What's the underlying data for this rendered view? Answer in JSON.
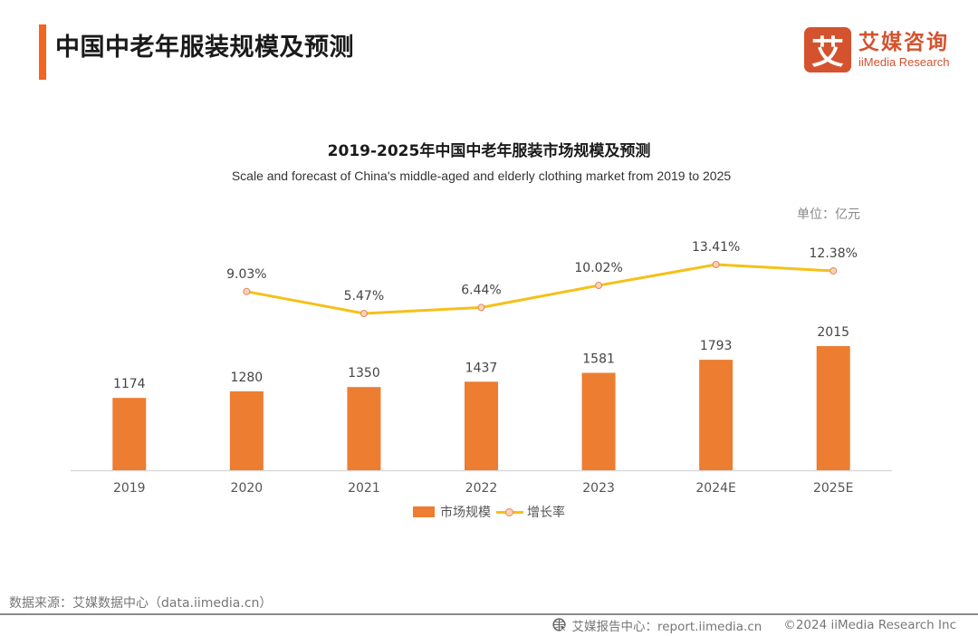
{
  "header": {
    "title": "中国中老年服装规模及预测",
    "logo_mark": "艾",
    "logo_cn": "艾媒咨询",
    "logo_en": "iiMedia Research"
  },
  "colors": {
    "accent": "#f26522",
    "bar": "#ed7d31",
    "line": "#f5c018",
    "marker_fill": "#fbd2b8",
    "marker_stroke": "#e08a5a",
    "brand": "#d4532e"
  },
  "chart_data": {
    "type": "bar",
    "title": "2019-2025年中国中老年服装市场规模及预测",
    "subtitle": "Scale and forecast of China's middle-aged and elderly clothing market from 2019 to 2025",
    "unit": "单位：亿元",
    "categories": [
      "2019",
      "2020",
      "2021",
      "2022",
      "2023",
      "2024E",
      "2025E"
    ],
    "series": [
      {
        "name": "市场规模",
        "type": "bar",
        "values": [
          1174,
          1280,
          1350,
          1437,
          1581,
          1793,
          2015
        ],
        "labels": [
          "1174",
          "1280",
          "1350",
          "1437",
          "1581",
          "1793",
          "2015"
        ]
      },
      {
        "name": "增长率",
        "type": "line",
        "values": [
          null,
          9.03,
          5.47,
          6.44,
          10.02,
          13.41,
          12.38
        ],
        "labels": [
          "",
          "9.03%",
          "5.47%",
          "6.44%",
          "10.02%",
          "13.41%",
          "12.38%"
        ]
      }
    ],
    "legend": [
      "市场规模",
      "增长率"
    ],
    "legend_position": "bottom",
    "grid": false,
    "xlabel": "",
    "ylabel": ""
  },
  "footer": {
    "source": "数据来源：艾媒数据中心（data.iimedia.cn）",
    "report_center": "艾媒报告中心：report.iimedia.cn",
    "copyright": "©2024  iiMedia Research Inc"
  }
}
